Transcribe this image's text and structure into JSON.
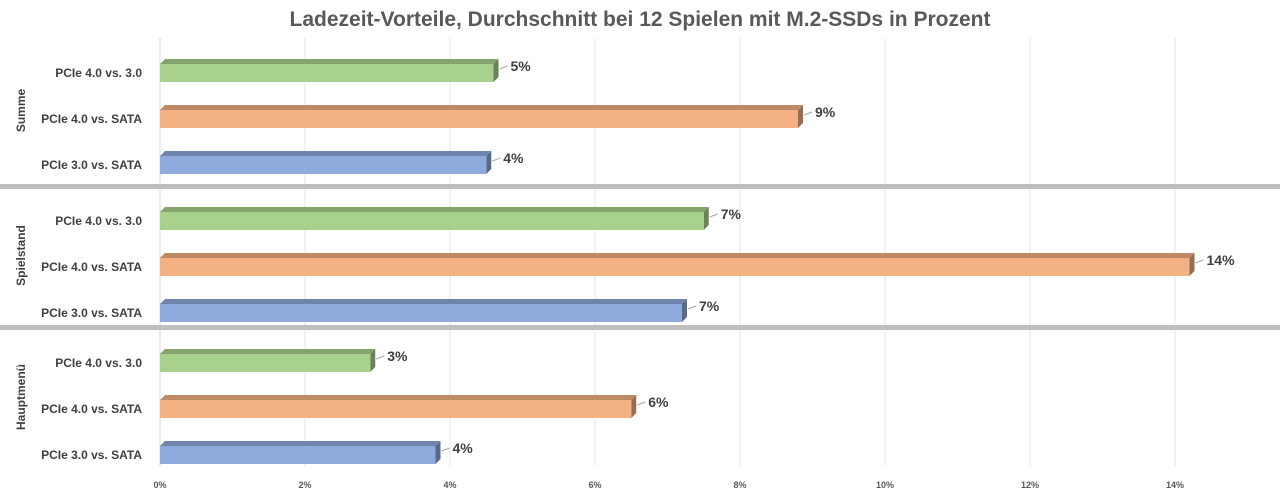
{
  "chart_data": {
    "type": "bar",
    "orientation": "horizontal",
    "title": "Ladezeit-Vorteile, Durchschnitt bei 12 Spielen mit M.2-SSDs in Prozent",
    "xlim": [
      0,
      14.5
    ],
    "grid": true,
    "x_ticks": [
      "0%",
      "2%",
      "4%",
      "6%",
      "8%",
      "10%",
      "12%",
      "14%"
    ],
    "x_tick_values": [
      0,
      2,
      4,
      6,
      8,
      10,
      12,
      14
    ],
    "groups": [
      {
        "name": "Summe",
        "bars": [
          {
            "category": "PCIe 4.0 vs. 3.0",
            "value": 4.6,
            "label": "5%",
            "color": "#a9d18e"
          },
          {
            "category": "PCIe 4.0 vs. SATA",
            "value": 8.8,
            "label": "9%",
            "color": "#f4b183"
          },
          {
            "category": "PCIe 3.0 vs. SATA",
            "value": 4.5,
            "label": "4%",
            "color": "#8faadc"
          }
        ]
      },
      {
        "name": "Spielstand",
        "bars": [
          {
            "category": "PCIe 4.0 vs. 3.0",
            "value": 7.5,
            "label": "7%",
            "color": "#a9d18e"
          },
          {
            "category": "PCIe 4.0 vs. SATA",
            "value": 14.2,
            "label": "14%",
            "color": "#f4b183"
          },
          {
            "category": "PCIe 3.0 vs. SATA",
            "value": 7.2,
            "label": "7%",
            "color": "#8faadc"
          }
        ]
      },
      {
        "name": "Hauptmenü",
        "bars": [
          {
            "category": "PCIe 4.0 vs. 3.0",
            "value": 2.9,
            "label": "3%",
            "color": "#a9d18e"
          },
          {
            "category": "PCIe 4.0 vs. SATA",
            "value": 6.5,
            "label": "6%",
            "color": "#f4b183"
          },
          {
            "category": "PCIe 3.0 vs. SATA",
            "value": 3.8,
            "label": "4%",
            "color": "#8faadc"
          }
        ]
      }
    ]
  }
}
